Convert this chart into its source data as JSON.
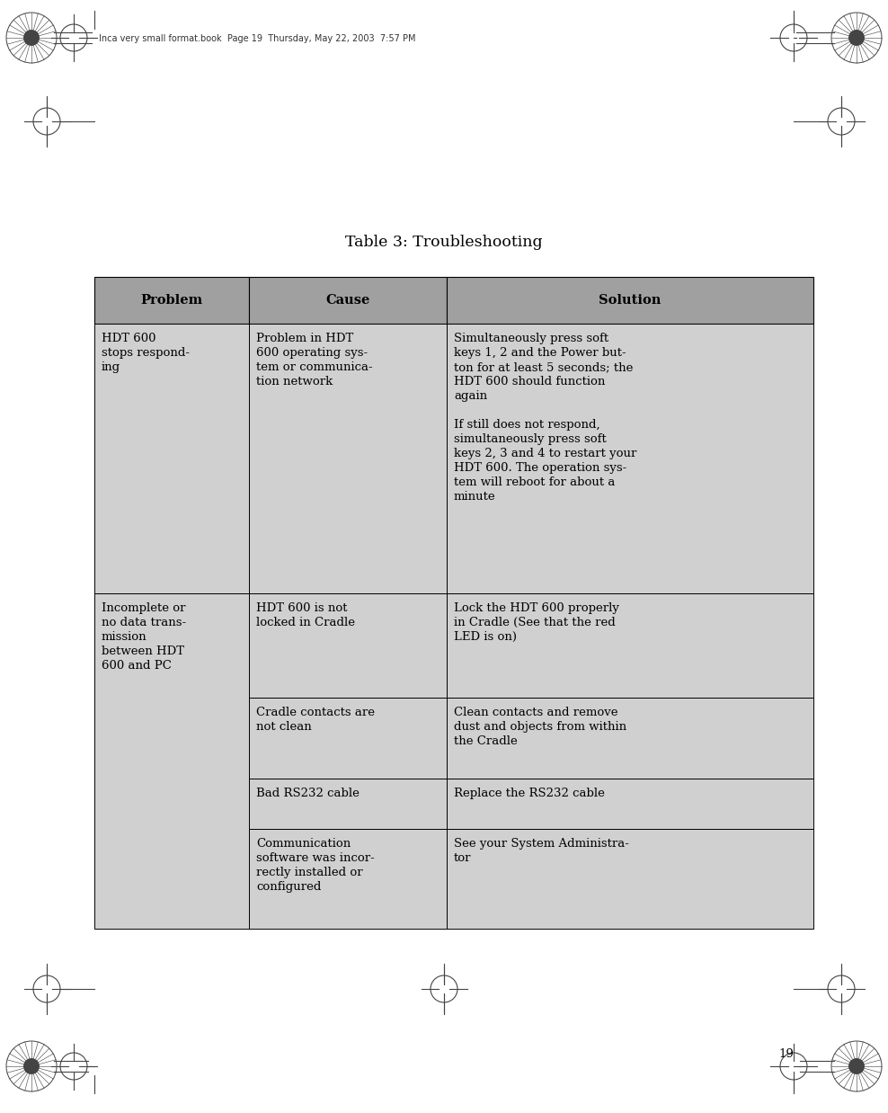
{
  "title": "Table 3: Troubleshooting",
  "title_fontsize": 12.5,
  "header": [
    "Problem",
    "Cause",
    "Solution"
  ],
  "header_bg": "#a0a0a0",
  "header_fontsize": 10.5,
  "cell_bg": "#d0d0d0",
  "cell_fontsize": 9.5,
  "border_color": "#000000",
  "text_color": "#000000",
  "page_bg": "#ffffff",
  "page_number": "19",
  "header_text": "Inca very small format.book  Page 19  Thursday, May 22, 2003  7:57 PM",
  "rows": [
    {
      "problem": "HDT 600\nstops respond-\ning",
      "cause": "Problem in HDT\n600 operating sys-\ntem or communica-\ntion network",
      "solution": "Simultaneously press soft\nkeys 1, 2 and the Power but-\nton for at least 5 seconds; the\nHDT 600 should function\nagain\n\nIf still does not respond,\nsimultaneously press soft\nkeys 2, 3 and 4 to restart your\nHDT 600. The operation sys-\ntem will reboot for about a\nminute",
      "span": 1
    },
    {
      "problem": "Incomplete or\nno data trans-\nmission\nbetween HDT\n600 and PC",
      "cause": "HDT 600 is not\nlocked in Cradle",
      "solution": "Lock the HDT 600 properly\nin Cradle (See that the red\nLED is on)",
      "span": 4
    },
    {
      "problem": "",
      "cause": "Cradle contacts are\nnot clean",
      "solution": "Clean contacts and remove\ndust and objects from within\nthe Cradle",
      "span": 0
    },
    {
      "problem": "",
      "cause": "Bad RS232 cable",
      "solution": "Replace the RS232 cable",
      "span": 0
    },
    {
      "problem": "",
      "cause": "Communication\nsoftware was incor-\nrectly installed or\nconfigured",
      "solution": "See your System Administra-\ntor",
      "span": 0
    }
  ],
  "fig_width": 9.88,
  "fig_height": 12.38,
  "dpi": 100
}
